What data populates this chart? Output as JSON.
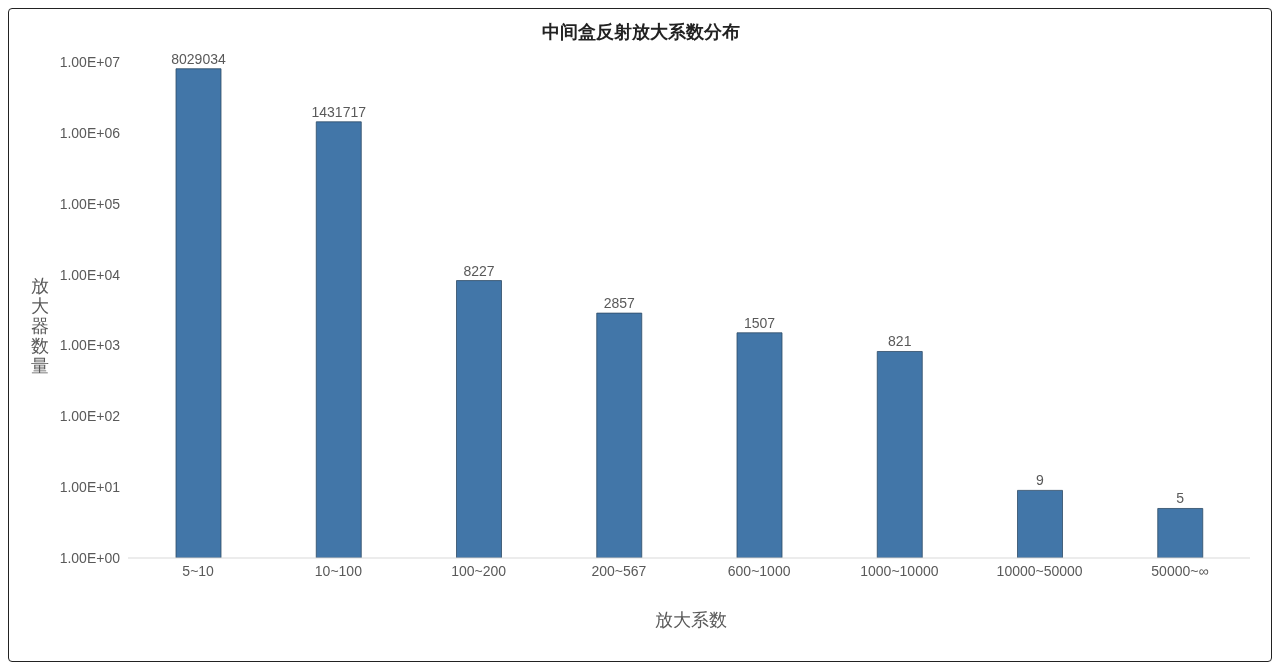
{
  "chart_data": {
    "type": "bar",
    "title": "中间盒反射放大系数分布",
    "xlabel": "放大系数",
    "ylabel": "放大器数量",
    "categories": [
      "5~10",
      "10~100",
      "100~200",
      "200~567",
      "600~1000",
      "1000~10000",
      "10000~50000",
      "50000~∞"
    ],
    "values": [
      8029034,
      1431717,
      8227,
      2857,
      1507,
      821,
      9,
      5
    ],
    "color": "#4276a8",
    "log": true,
    "ylim": [
      1,
      10000000
    ],
    "yticks": [
      {
        "value": 1,
        "label": "1.00E+00"
      },
      {
        "value": 10,
        "label": "1.00E+01"
      },
      {
        "value": 100,
        "label": "1.00E+02"
      },
      {
        "value": 1000,
        "label": "1.00E+03"
      },
      {
        "value": 10000,
        "label": "1.00E+04"
      },
      {
        "value": 100000,
        "label": "1.00E+05"
      },
      {
        "value": 1000000,
        "label": "1.00E+06"
      },
      {
        "value": 10000000,
        "label": "1.00E+07"
      }
    ],
    "data_labels": true,
    "grid": false,
    "legend": false
  }
}
